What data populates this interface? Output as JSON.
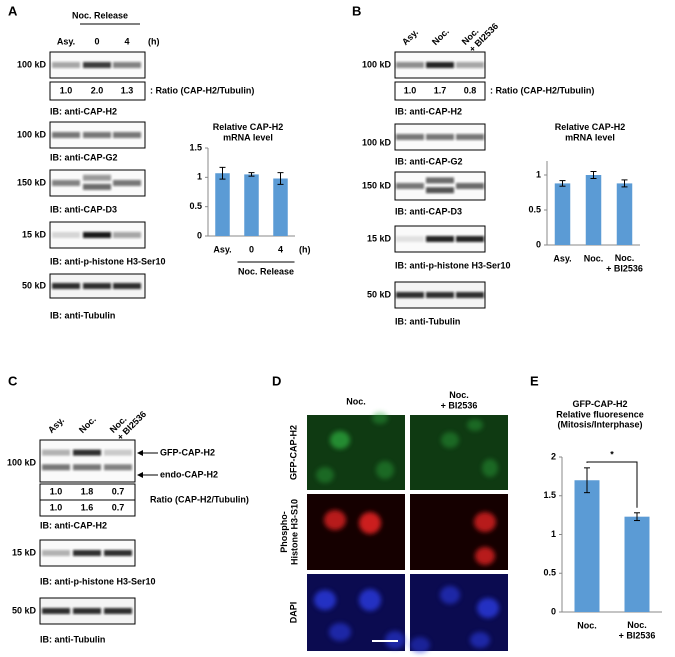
{
  "panels": {
    "A": {
      "label": "A",
      "header": "Noc. Release",
      "lanes": [
        "Asy.",
        "0",
        "4"
      ],
      "unit": "(h)",
      "ratio": {
        "values": [
          "1.0",
          "2.0",
          "1.3"
        ],
        "label": ": Ratio (CAP-H2/Tubulin)"
      },
      "blots": [
        {
          "marker": "100 kD",
          "ib": "IB: anti-CAP-H2"
        },
        {
          "marker": "100 kD",
          "ib": "IB: anti-CAP-G2"
        },
        {
          "marker": "150 kD",
          "ib": "IB: anti-CAP-D3"
        },
        {
          "marker": "15 kD",
          "ib": "IB: anti-p-histone H3-Ser10"
        },
        {
          "marker": "50 kD",
          "ib": "IB: anti-Tubulin"
        }
      ]
    },
    "B": {
      "label": "B",
      "lanes": [
        "Asy.",
        "Noc.",
        "Noc.\n+ BI2536"
      ],
      "ratio": {
        "values": [
          "1.0",
          "1.7",
          "0.8"
        ],
        "label": ": Ratio (CAP-H2/Tubulin)"
      },
      "blots": [
        {
          "marker": "100 kD",
          "ib": "IB: anti-CAP-H2"
        },
        {
          "marker": "100 kD",
          "ib": "IB: anti-CAP-G2"
        },
        {
          "marker": "150 kD",
          "ib": "IB: anti-CAP-D3"
        },
        {
          "marker": "15 kD",
          "ib": "IB: anti-p-histone H3-Ser10"
        },
        {
          "marker": "50 kD",
          "ib": "IB: anti-Tubulin"
        }
      ]
    },
    "C": {
      "label": "C",
      "lanes": [
        "Asy.",
        "Noc.",
        "Noc.\n+ BI2536"
      ],
      "bands": [
        "GFP-CAP-H2",
        "endo-CAP-H2"
      ],
      "ratio": {
        "rows": [
          [
            "1.0",
            "1.8",
            "0.7"
          ],
          [
            "1.0",
            "1.6",
            "0.7"
          ]
        ],
        "label": "Ratio (CAP-H2/Tubulin)"
      },
      "blots": [
        {
          "marker": "100 kD",
          "ib": "IB: anti-CAP-H2"
        },
        {
          "marker": "15 kD",
          "ib": "IB: anti-p-histone H3-Ser10"
        },
        {
          "marker": "50 kD",
          "ib": "IB: anti-Tubulin"
        }
      ]
    },
    "D": {
      "label": "D",
      "columns": [
        "Noc.",
        "Noc.\n+ BI2536"
      ],
      "rows": [
        "GFP-CAP-H2",
        "Phospho-\nHistone H3-S10",
        "DAPI"
      ]
    },
    "E": {
      "label": "E"
    }
  },
  "chart_data": [
    {
      "type": "bar",
      "title": "Relative CAP-H2\nmRNA level",
      "categories": [
        "Asy.",
        "0",
        "4"
      ],
      "values": [
        1.07,
        1.05,
        0.98
      ],
      "errors": [
        0.1,
        0.03,
        0.1
      ],
      "color": "#5b9bd5",
      "ylim": [
        0,
        1.5
      ],
      "yticks": [
        0,
        0.5,
        1,
        1.5
      ],
      "x_unit": "(h)",
      "x_group_label": "Noc. Release"
    },
    {
      "type": "bar",
      "title": "Relative CAP-H2\nmRNA level",
      "categories": [
        "Asy.",
        "Noc.",
        "Noc.\n+ BI2536"
      ],
      "values": [
        0.88,
        1.0,
        0.88
      ],
      "errors": [
        0.04,
        0.05,
        0.05
      ],
      "color": "#5b9bd5",
      "ylim": [
        0,
        1.2
      ],
      "yticks": [
        0,
        0.5,
        1
      ]
    },
    {
      "type": "bar",
      "title": "GFP-CAP-H2\nRelative fluoresence\n(Mitosis/Interphase)",
      "categories": [
        "Noc.",
        "Noc.\n+ BI2536"
      ],
      "values": [
        1.7,
        1.23
      ],
      "errors": [
        0.16,
        0.05
      ],
      "color": "#5b9bd5",
      "ylim": [
        0,
        2
      ],
      "yticks": [
        0,
        0.5,
        1,
        1.5,
        2
      ],
      "annotation": "*"
    }
  ]
}
